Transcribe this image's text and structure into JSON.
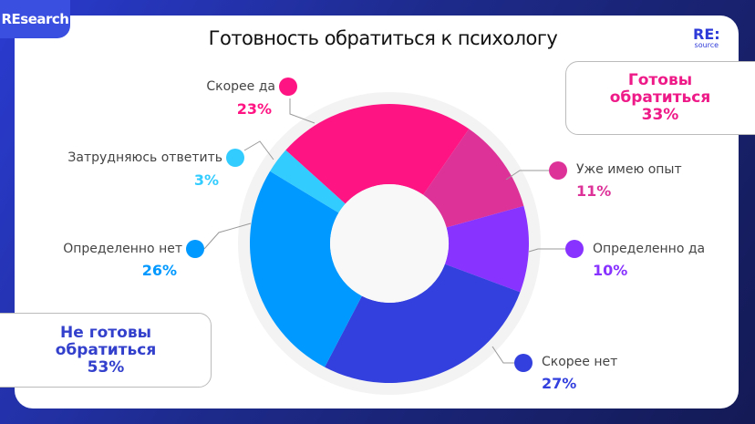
{
  "brand_tag": "REsearch",
  "logo": {
    "main": "RE:",
    "sub": "source"
  },
  "chart_data": {
    "type": "pie",
    "donut": true,
    "title": "Готовность обратиться к психологу",
    "slices": [
      {
        "label": "Скорее да",
        "value": 23,
        "pct_label": "23%",
        "color": "#ff1483"
      },
      {
        "label": "Уже имею опыт",
        "value": 11,
        "pct_label": "11%",
        "color": "#dd3399"
      },
      {
        "label": "Определенно да",
        "value": 10,
        "pct_label": "10%",
        "color": "#8833ff"
      },
      {
        "label": "Скорее нет",
        "value": 27,
        "pct_label": "27%",
        "color": "#3340dd"
      },
      {
        "label": "Определенно нет",
        "value": 26,
        "pct_label": "26%",
        "color": "#0099ff"
      },
      {
        "label": "Затрудняюсь ответить",
        "value": 3,
        "pct_label": "3%",
        "color": "#33ccff"
      }
    ]
  },
  "groups": {
    "ready": {
      "line1": "Готовы",
      "line2": "обратиться",
      "pct": "33%",
      "color": "#ee1a88"
    },
    "not_ready": {
      "line1": "Не готовы",
      "line2": "обратиться",
      "pct": "53%",
      "color": "#3340cc"
    }
  }
}
